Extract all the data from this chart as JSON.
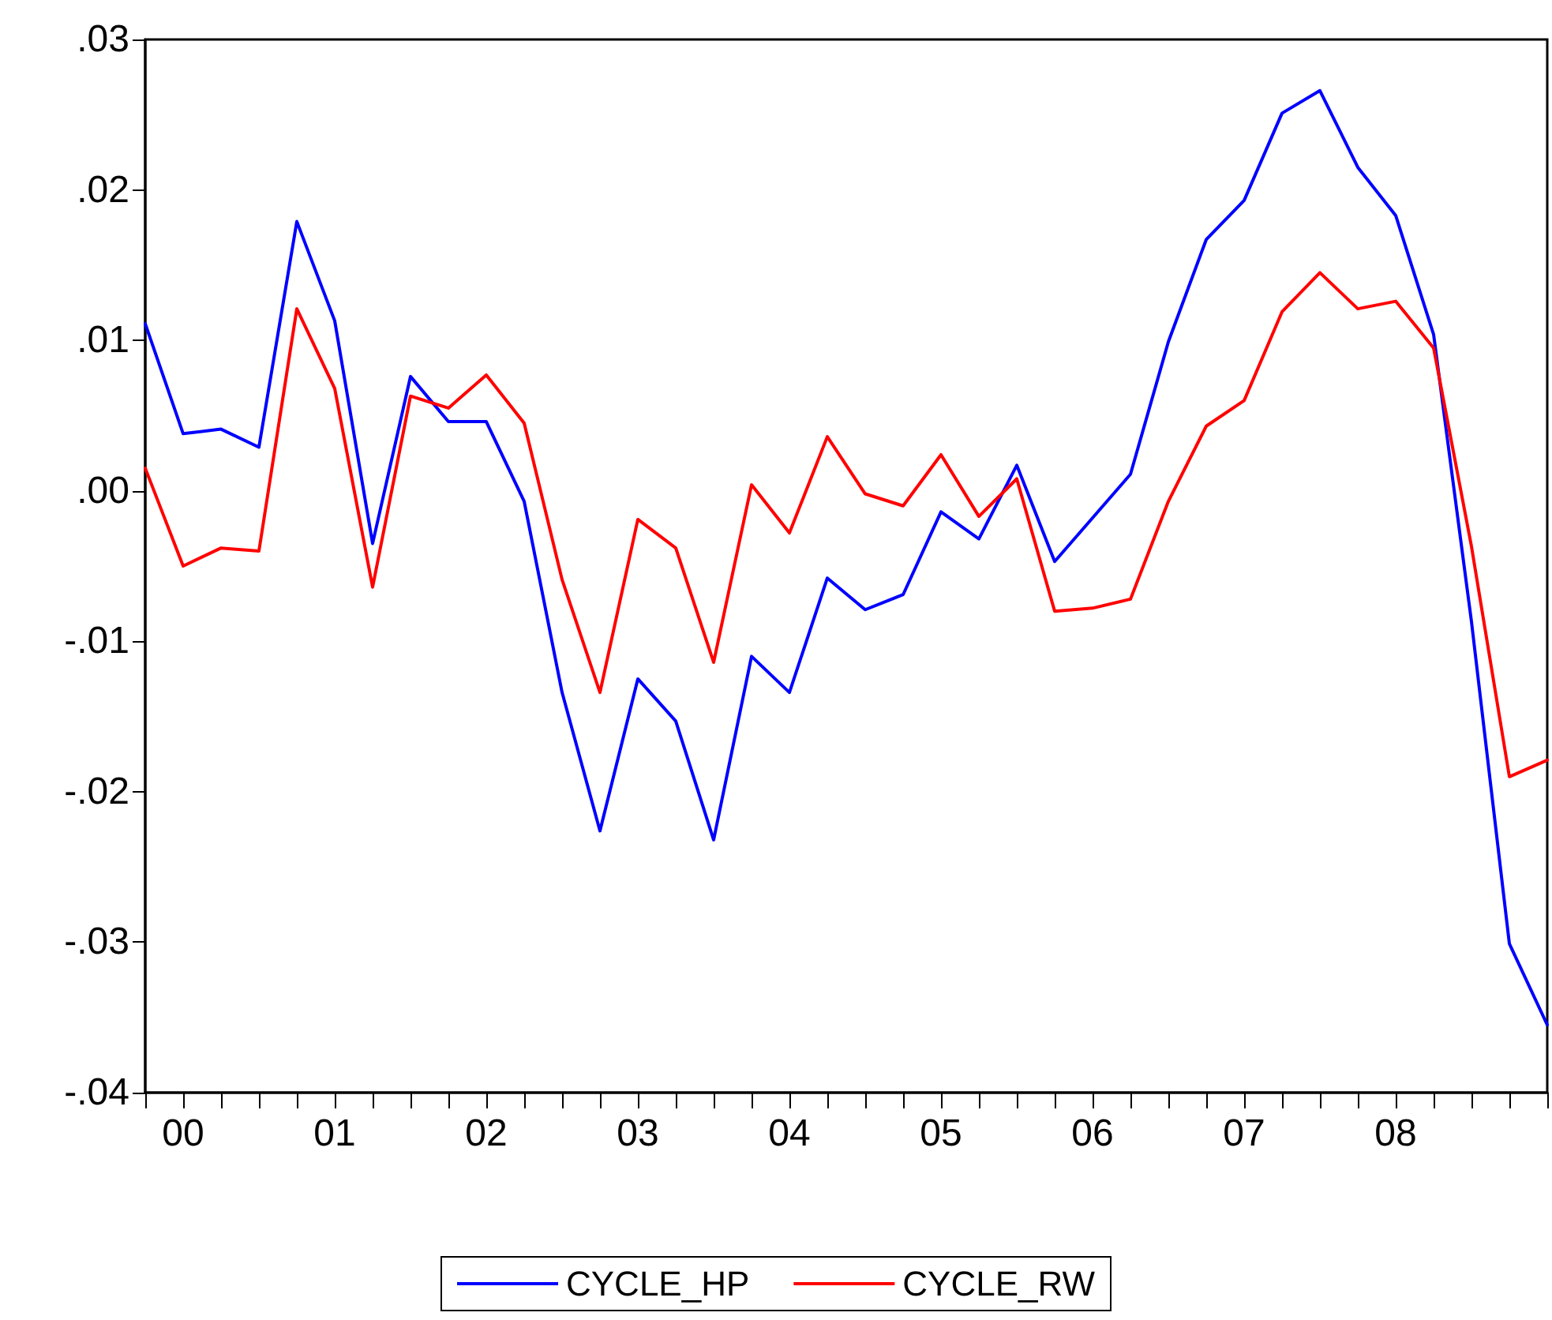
{
  "chart_data": {
    "type": "line",
    "categories": [
      null,
      "00",
      null,
      null,
      null,
      "01",
      null,
      null,
      null,
      "02",
      null,
      null,
      null,
      "03",
      null,
      null,
      null,
      "04",
      null,
      null,
      null,
      "05",
      null,
      null,
      null,
      "06",
      null,
      null,
      null,
      "07",
      null,
      null,
      null,
      "08",
      null,
      null,
      null,
      null
    ],
    "series": [
      {
        "name": "CYCLE_HP",
        "color": "#0000ff",
        "values": [
          0.0111,
          0.0038,
          0.0041,
          0.0029,
          0.0179,
          0.0113,
          -0.0035,
          0.0076,
          0.0046,
          0.0046,
          -0.0007,
          -0.0134,
          -0.0226,
          -0.0125,
          -0.0153,
          -0.0232,
          -0.011,
          -0.0134,
          -0.0058,
          -0.0079,
          -0.0069,
          -0.0014,
          -0.0032,
          0.0017,
          -0.0047,
          -0.0018,
          0.0011,
          0.0099,
          0.0167,
          0.0193,
          0.0251,
          0.0266,
          0.0215,
          0.0183,
          0.0104,
          -0.0087,
          -0.0301,
          -0.0355
        ]
      },
      {
        "name": "CYCLE_RW",
        "color": "#ff0000",
        "values": [
          0.0015,
          -0.005,
          -0.0038,
          -0.004,
          0.0121,
          0.0068,
          -0.0064,
          0.0063,
          0.0055,
          0.0077,
          0.0045,
          -0.0059,
          -0.0134,
          -0.0019,
          -0.0038,
          -0.0114,
          0.0004,
          -0.0028,
          0.0036,
          -0.0002,
          -0.001,
          0.0024,
          -0.0017,
          0.0008,
          -0.008,
          -0.0078,
          -0.0072,
          -0.0007,
          0.0043,
          0.006,
          0.0119,
          0.0145,
          0.0121,
          0.0126,
          0.0095,
          -0.0037,
          -0.019,
          -0.0179
        ]
      }
    ],
    "ylim": [
      -0.04,
      0.03
    ],
    "yticks": [
      {
        "value": -0.04,
        "label": "-.04"
      },
      {
        "value": -0.03,
        "label": "-.03"
      },
      {
        "value": -0.02,
        "label": "-.02"
      },
      {
        "value": -0.01,
        "label": "-.01"
      },
      {
        "value": 0,
        "label": ".00"
      },
      {
        "value": 0.01,
        "label": ".01"
      },
      {
        "value": 0.02,
        "label": ".02"
      },
      {
        "value": 0.03,
        "label": ".03"
      }
    ],
    "grid": false,
    "legend": "bottom",
    "marker": "none",
    "line_style": "solid"
  }
}
